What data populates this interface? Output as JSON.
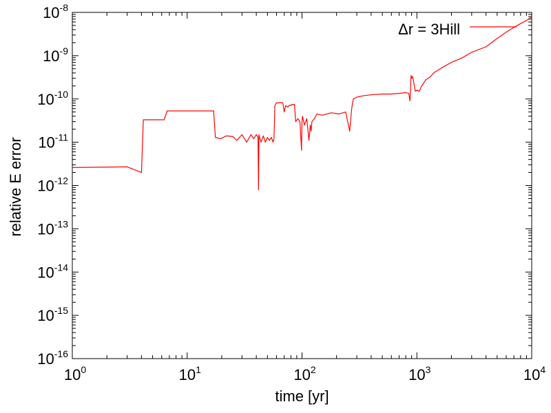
{
  "chart_data": {
    "type": "line",
    "xlabel": "time [yr]",
    "ylabel": "relative E error",
    "xscale": "log",
    "yscale": "log",
    "xlim": [
      1,
      10000
    ],
    "ylim": [
      1e-16,
      1e-08
    ],
    "grid": false,
    "legend_position": "top-right",
    "x_ticks": [
      {
        "base": "10",
        "exp": "0"
      },
      {
        "base": "10",
        "exp": "1"
      },
      {
        "base": "10",
        "exp": "2"
      },
      {
        "base": "10",
        "exp": "3"
      },
      {
        "base": "10",
        "exp": "4"
      }
    ],
    "y_ticks": [
      {
        "base": "10",
        "exp": "-16"
      },
      {
        "base": "10",
        "exp": "-15"
      },
      {
        "base": "10",
        "exp": "-14"
      },
      {
        "base": "10",
        "exp": "-13"
      },
      {
        "base": "10",
        "exp": "-12"
      },
      {
        "base": "10",
        "exp": "-11"
      },
      {
        "base": "10",
        "exp": "-10"
      },
      {
        "base": "10",
        "exp": "-9"
      },
      {
        "base": "10",
        "exp": "-8"
      }
    ],
    "series": [
      {
        "name": "Δr = 3Hill",
        "color": "#ff0000",
        "x": [
          1,
          3,
          4,
          4.15,
          6.3,
          6.7,
          17,
          17.6,
          19.5,
          22,
          25,
          27,
          30,
          33,
          36,
          38,
          40,
          41.4,
          41.8,
          42.2,
          44,
          46,
          48,
          50,
          52,
          54,
          56,
          57,
          58,
          60,
          62,
          64,
          66,
          68,
          70,
          72,
          75,
          78,
          80,
          82,
          84,
          86,
          88,
          92,
          96,
          99,
          100,
          101,
          105,
          110,
          115,
          118,
          120,
          122,
          128,
          135,
          150,
          180,
          210,
          240,
          260,
          270,
          275,
          280,
          300,
          350,
          400,
          500,
          600,
          700,
          800,
          850,
          870,
          880,
          890,
          900,
          920,
          970,
          1000,
          1050,
          1100,
          1200,
          1300,
          1400,
          1500,
          1700,
          2000,
          2500,
          3000,
          4000,
          5000,
          6000,
          7000,
          8000,
          9000,
          10000
        ],
        "y": [
          2.6e-12,
          2.7e-12,
          2e-12,
          3.3e-11,
          3.3e-11,
          5.3e-11,
          5.3e-11,
          1.3e-11,
          1.2e-11,
          1.4e-11,
          1.35e-11,
          1.1e-11,
          1.5e-11,
          1e-11,
          1.5e-11,
          1.2e-11,
          1.5e-11,
          1.3e-11,
          8e-13,
          1.5e-11,
          1e-11,
          1.4e-11,
          1e-11,
          1.3e-11,
          1.1e-11,
          1.3e-11,
          1e-11,
          1.2e-11,
          7e-11,
          8.2e-11,
          8e-11,
          8.3e-11,
          8.1e-11,
          8.2e-11,
          5e-11,
          7e-11,
          6.5e-11,
          7.2e-11,
          7e-11,
          7.5e-11,
          7.3e-11,
          7.5e-11,
          3e-11,
          3.5e-11,
          3e-11,
          6.5e-12,
          3e-11,
          4e-11,
          2.5e-11,
          3.5e-11,
          1.1e-11,
          2.5e-11,
          1.8e-11,
          3e-11,
          3.5e-11,
          4.5e-11,
          4.2e-11,
          4.8e-11,
          4.5e-11,
          5e-11,
          1.8e-11,
          5.5e-11,
          8e-11,
          1e-10,
          1.1e-10,
          1.2e-10,
          1.25e-10,
          1.3e-10,
          1.3e-10,
          1.35e-10,
          1.4e-10,
          1.35e-10,
          9e-11,
          1.5e-10,
          3.5e-10,
          3e-10,
          3.3e-10,
          1.5e-10,
          1.6e-10,
          1.5e-10,
          2e-10,
          2.8e-10,
          3.2e-10,
          4e-10,
          4.5e-10,
          5.5e-10,
          7e-10,
          9e-10,
          1.2e-09,
          1.6e-09,
          2.5e-09,
          3.5e-09,
          4.5e-09,
          5.5e-09,
          6.5e-09,
          8e-09
        ]
      }
    ]
  }
}
